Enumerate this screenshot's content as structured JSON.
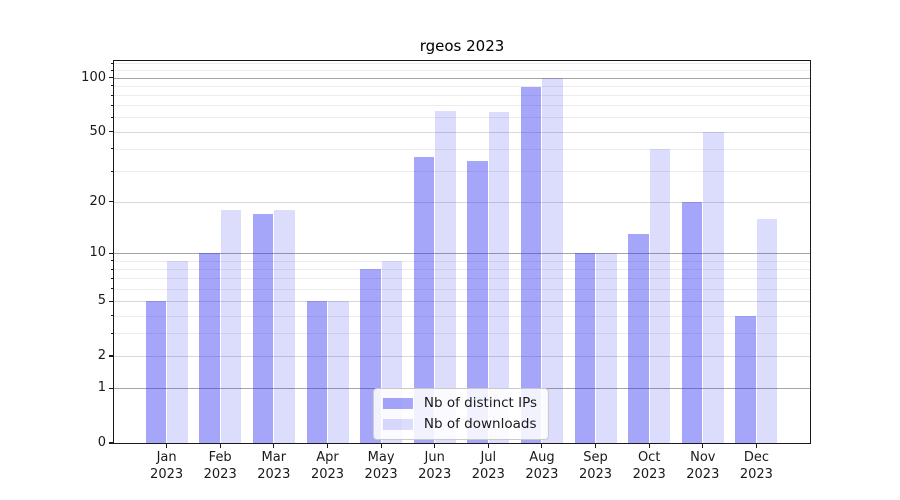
{
  "title": "rgeos 2023",
  "legend": {
    "items": [
      {
        "label": "Nb of distinct IPs",
        "series_key": "ips"
      },
      {
        "label": "Nb of downloads",
        "series_key": "downloads"
      }
    ]
  },
  "colors": {
    "bar_ips": "rgba(40,40,240,0.42)",
    "bar_downloads": "rgba(40,40,240,0.165)",
    "grid_decade": "#a6a6a6",
    "grid_major": "#d9d9d9",
    "grid_minor": "#ececec",
    "spine": "#1a1a1a"
  },
  "chart_data": {
    "type": "bar",
    "title": "rgeos 2023",
    "categories": [
      "Jan",
      "Feb",
      "Mar",
      "Apr",
      "May",
      "Jun",
      "Jul",
      "Aug",
      "Sep",
      "Oct",
      "Nov",
      "Dec"
    ],
    "category_year": "2023",
    "series": [
      {
        "name": "Nb of distinct IPs",
        "key": "ips",
        "values": [
          5,
          10,
          17,
          5,
          8,
          36,
          34,
          89,
          10,
          13,
          20,
          4
        ]
      },
      {
        "name": "Nb of downloads",
        "key": "downloads",
        "values": [
          9,
          18,
          18,
          5,
          9,
          65,
          64,
          100,
          10,
          40,
          50,
          16
        ]
      }
    ],
    "yscale": "log1p",
    "ylim": [
      0,
      125
    ],
    "y_ticks": [
      0,
      1,
      2,
      5,
      10,
      20,
      50,
      100
    ],
    "y_decade_lines": [
      1,
      10,
      100
    ],
    "y_major_lines": [
      2,
      5,
      20,
      50
    ],
    "y_minor_lines": [
      3,
      4,
      6,
      7,
      8,
      9,
      30,
      40,
      60,
      70,
      80,
      90,
      110,
      120
    ],
    "grid": "horizontal",
    "legend_position": "lower center",
    "xlabel": "",
    "ylabel": ""
  }
}
